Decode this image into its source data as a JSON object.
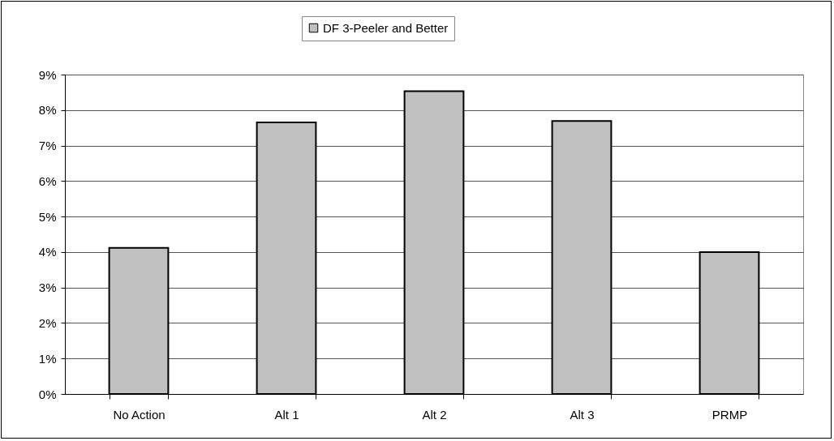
{
  "chart_data": {
    "type": "bar",
    "categories": [
      "No Action",
      "Alt 1",
      "Alt 2",
      "Alt 3",
      "PRMP"
    ],
    "series": [
      {
        "name": "DF 3-Peeler and Better",
        "color": "#c0c0c0",
        "values": [
          4.12,
          7.65,
          8.53,
          7.69,
          4.0
        ]
      }
    ],
    "ylim": [
      0,
      9
    ],
    "yticks": [
      {
        "value": 0,
        "label": "0%"
      },
      {
        "value": 1,
        "label": "1%"
      },
      {
        "value": 2,
        "label": "2%"
      },
      {
        "value": 3,
        "label": "3%"
      },
      {
        "value": 4,
        "label": "4%"
      },
      {
        "value": 5,
        "label": "5%"
      },
      {
        "value": 6,
        "label": "6%"
      },
      {
        "value": 7,
        "label": "7%"
      },
      {
        "value": 8,
        "label": "8%"
      },
      {
        "value": 9,
        "label": "9%"
      }
    ],
    "grid": "y",
    "legend": "top"
  }
}
